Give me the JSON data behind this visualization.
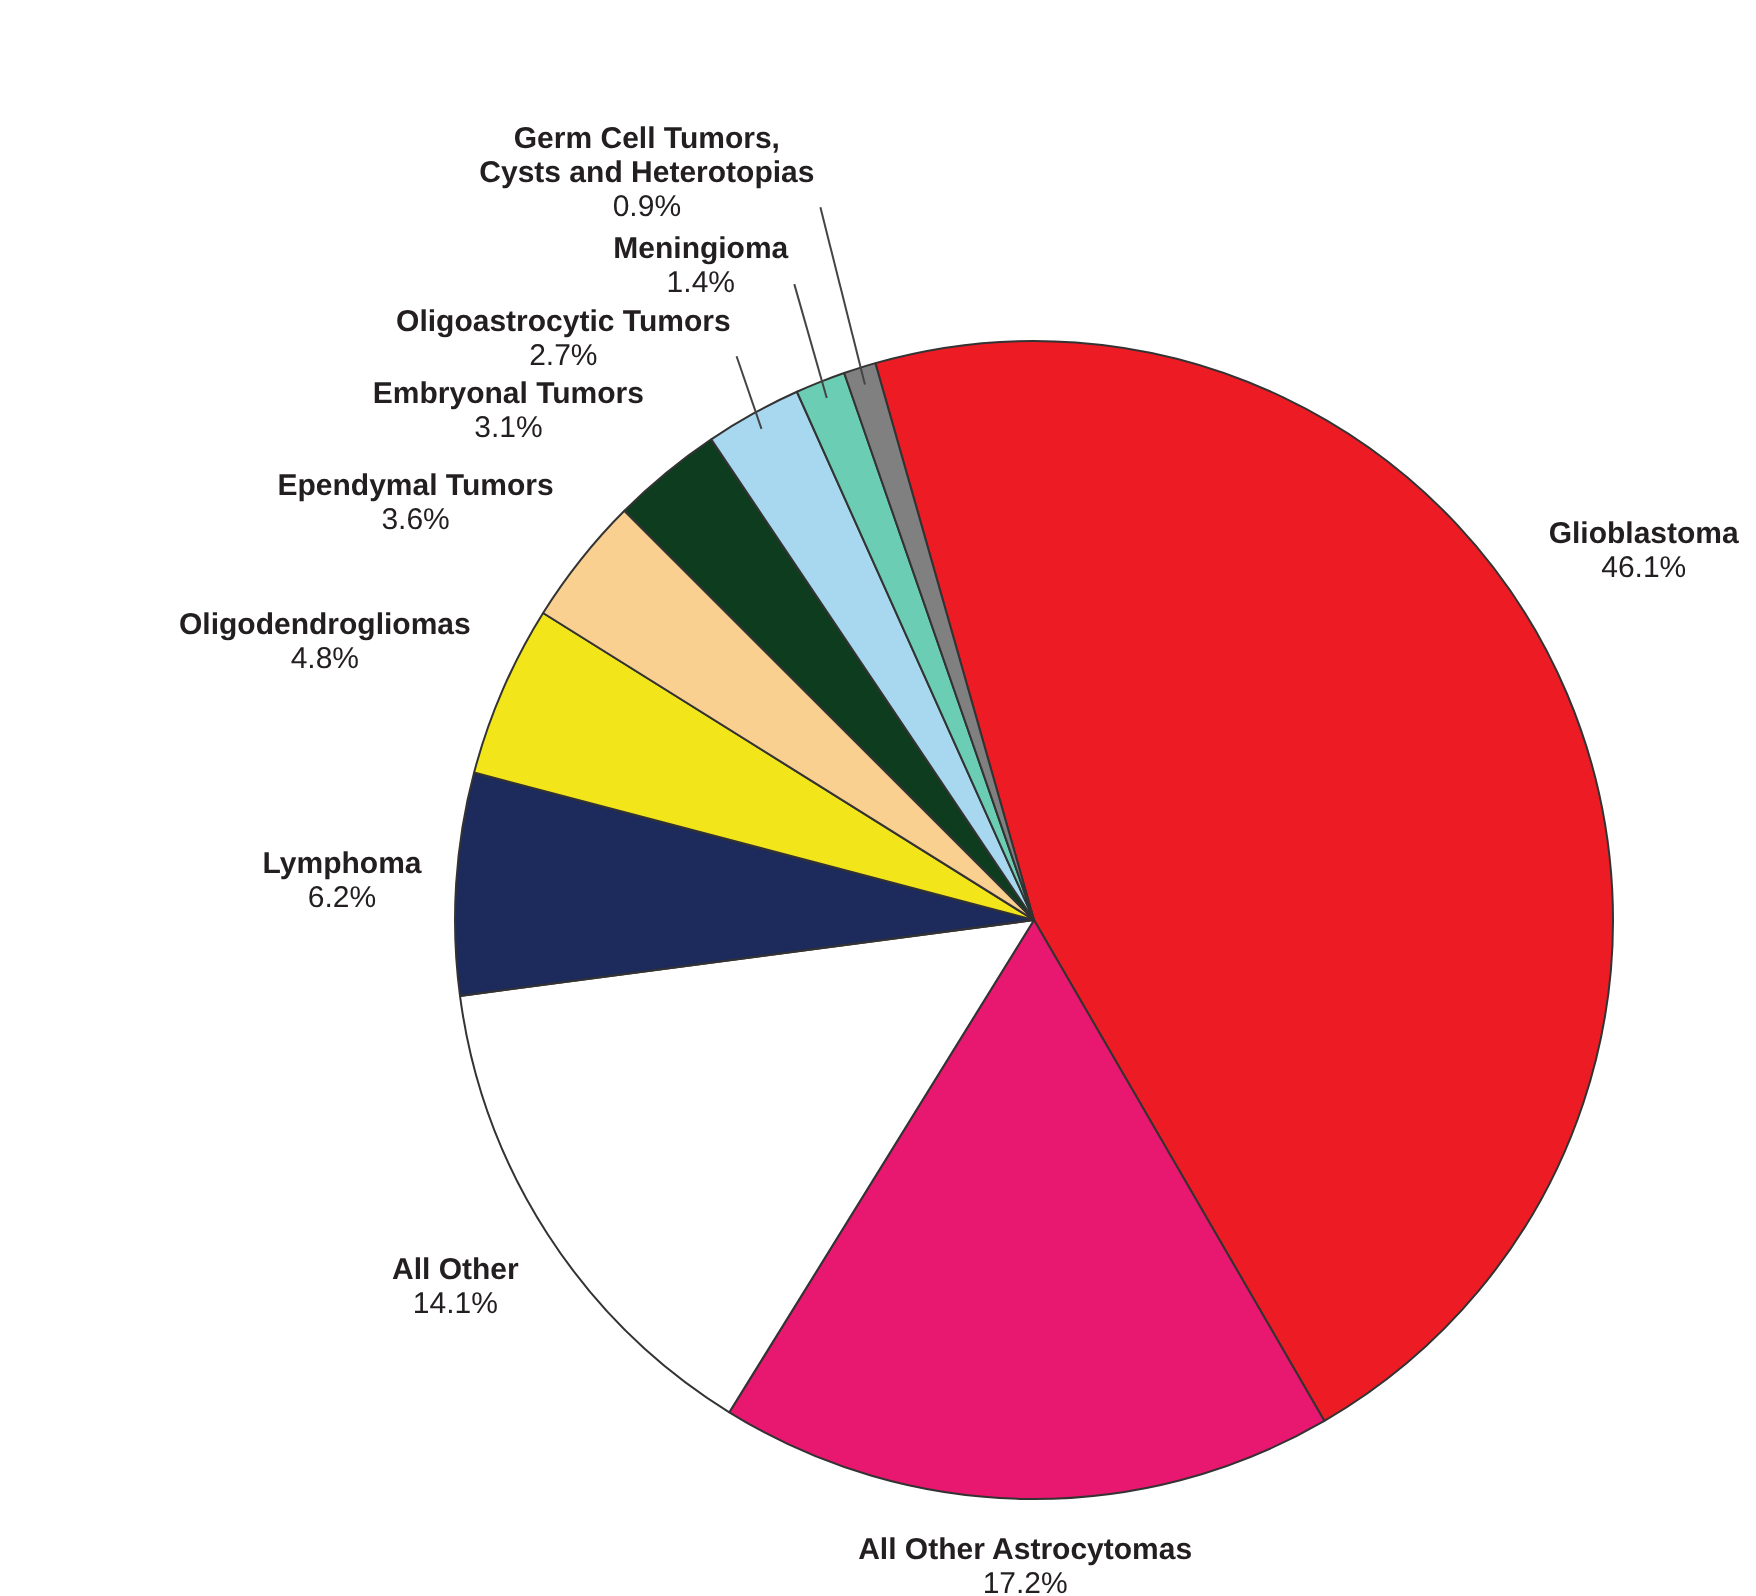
{
  "chart_data": {
    "type": "pie",
    "categories": [
      "Glioblastoma",
      "All Other Astrocytomas",
      "All Other",
      "Lymphoma",
      "Oligodendrogliomas",
      "Ependymal Tumors",
      "Embryonal Tumors",
      "Oligoastrocytic Tumors",
      "Meningioma",
      "Germ Cell Tumors, Cysts and Heterotopias"
    ],
    "values": [
      46.1,
      17.2,
      14.1,
      6.2,
      4.8,
      3.6,
      3.1,
      2.7,
      1.4,
      0.9
    ],
    "value_labels": [
      "46.1%",
      "17.2%",
      "14.1%",
      "6.2%",
      "4.8%",
      "3.6%",
      "3.1%",
      "2.7%",
      "1.4%",
      "0.9%"
    ],
    "colors": [
      "#ed1c24",
      "#e8176f",
      "#ffffff",
      "#1c2a5c",
      "#f2e51a",
      "#f9d08f",
      "#0d3d1e",
      "#a8d8f0",
      "#6ccdb5",
      "#808080"
    ]
  }
}
